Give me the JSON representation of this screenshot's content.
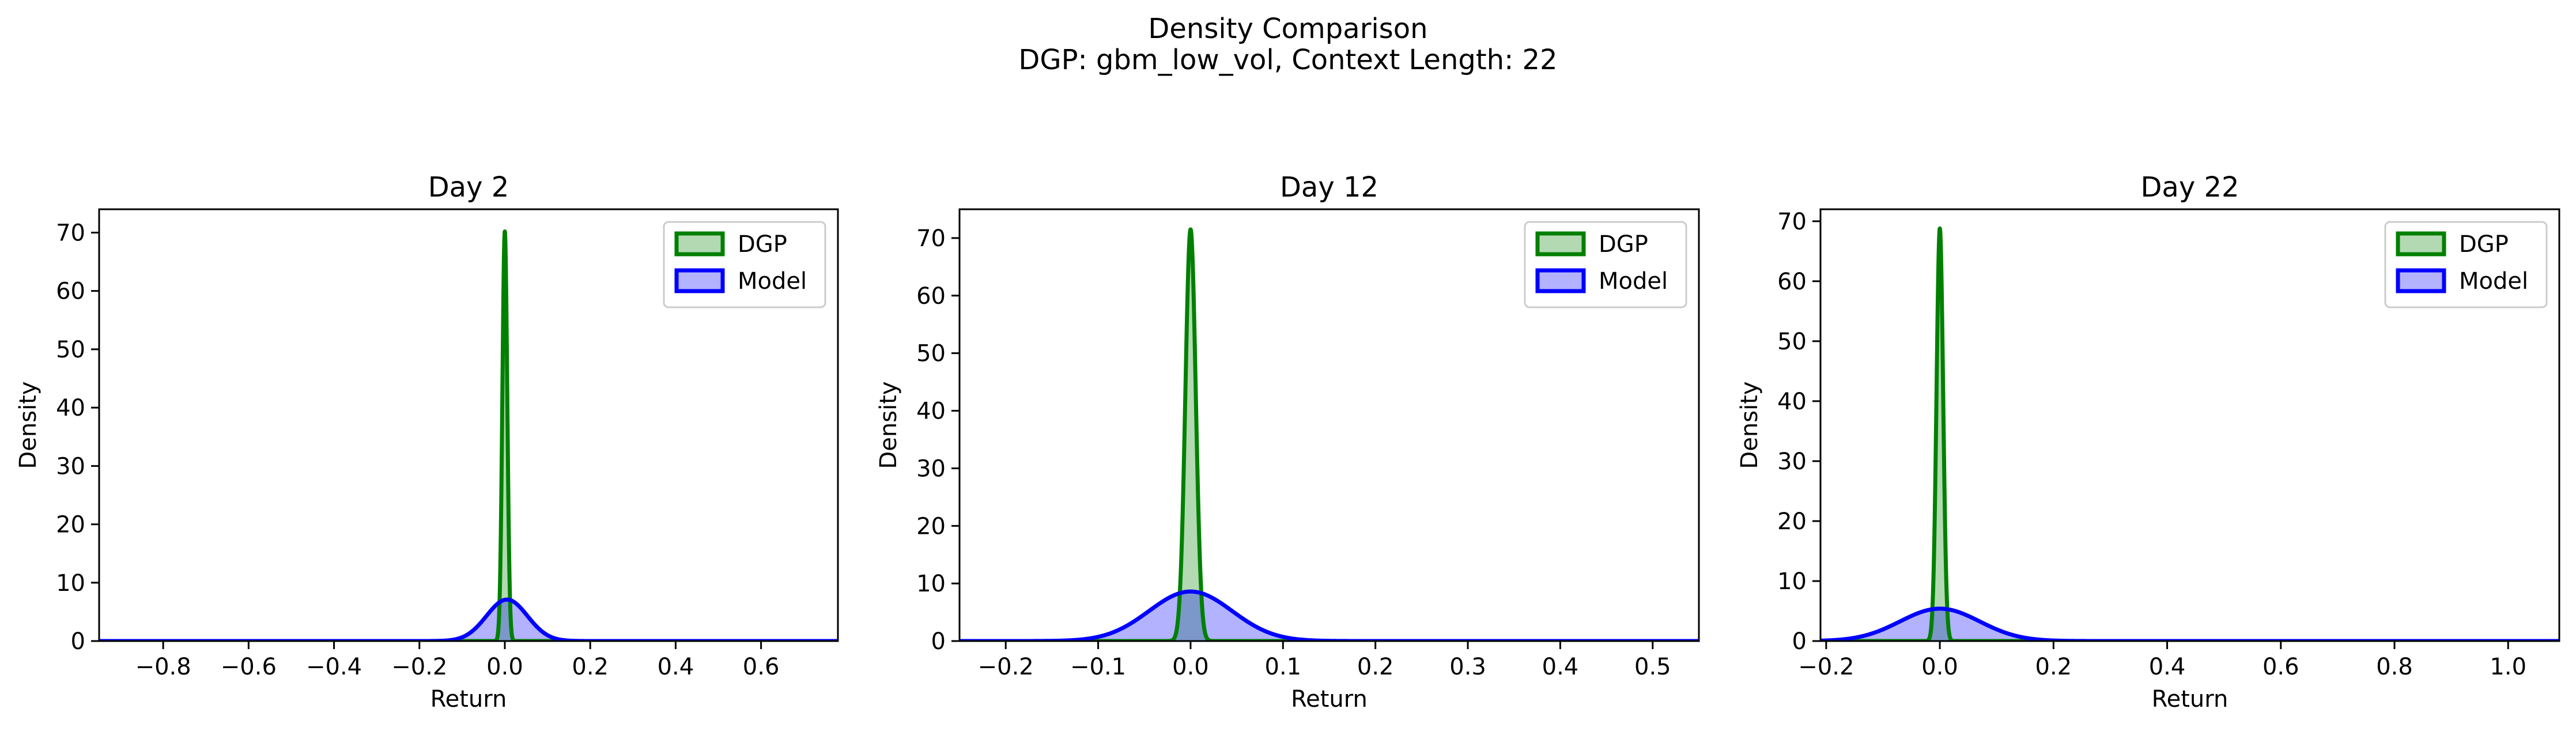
{
  "figure": {
    "title_line1": "Density Comparison",
    "title_line2": "DGP: gbm_low_vol, Context Length: 22"
  },
  "colors": {
    "dgp_line": "#008000",
    "dgp_fill": "#008000",
    "model_line": "#0000ff",
    "model_fill": "#0000ff",
    "axis": "#000000"
  },
  "chart_data": [
    {
      "type": "area",
      "title": "Day 2",
      "xlabel": "Return",
      "ylabel": "Density",
      "xlim": [
        -0.95,
        0.78
      ],
      "ylim": [
        0,
        74
      ],
      "xticks": [
        -0.8,
        -0.6,
        -0.4,
        -0.2,
        0.0,
        0.2,
        0.4,
        0.6
      ],
      "xtick_labels": [
        "−0.8",
        "−0.6",
        "−0.4",
        "−0.2",
        "0.0",
        "0.2",
        "0.4",
        "0.6"
      ],
      "yticks": [
        0,
        10,
        20,
        30,
        40,
        50,
        60,
        70
      ],
      "ytick_labels": [
        "0",
        "10",
        "20",
        "30",
        "40",
        "50",
        "60",
        "70"
      ],
      "legend": "top-right",
      "series": [
        {
          "name": "DGP",
          "peak_x": 0.0,
          "peak_density": 70.2,
          "std": 0.0057
        },
        {
          "name": "Model",
          "peak_x": 0.005,
          "peak_density": 7.1,
          "std": 0.048
        }
      ]
    },
    {
      "type": "area",
      "title": "Day 12",
      "xlabel": "Return",
      "ylabel": "Density",
      "xlim": [
        -0.25,
        0.55
      ],
      "ylim": [
        0,
        75
      ],
      "xticks": [
        -0.2,
        -0.1,
        0.0,
        0.1,
        0.2,
        0.3,
        0.4,
        0.5
      ],
      "xtick_labels": [
        "−0.2",
        "−0.1",
        "0.0",
        "0.1",
        "0.2",
        "0.3",
        "0.4",
        "0.5"
      ],
      "yticks": [
        0,
        10,
        20,
        30,
        40,
        50,
        60,
        70
      ],
      "ytick_labels": [
        "0",
        "10",
        "20",
        "30",
        "40",
        "50",
        "60",
        "70"
      ],
      "legend": "top-right",
      "series": [
        {
          "name": "DGP",
          "peak_x": 0.0,
          "peak_density": 71.5,
          "std": 0.0056
        },
        {
          "name": "Model",
          "peak_x": 0.0,
          "peak_density": 8.6,
          "std": 0.045
        }
      ]
    },
    {
      "type": "area",
      "title": "Day 22",
      "xlabel": "Return",
      "ylabel": "Density",
      "xlim": [
        -0.21,
        1.09
      ],
      "ylim": [
        0,
        72
      ],
      "xticks": [
        -0.2,
        0.0,
        0.2,
        0.4,
        0.6,
        0.8,
        1.0
      ],
      "xtick_labels": [
        "−0.2",
        "0.0",
        "0.2",
        "0.4",
        "0.6",
        "0.8",
        "1.0"
      ],
      "yticks": [
        0,
        10,
        20,
        30,
        40,
        50,
        60,
        70
      ],
      "ytick_labels": [
        "0",
        "10",
        "20",
        "30",
        "40",
        "50",
        "60",
        "70"
      ],
      "legend": "top-right",
      "series": [
        {
          "name": "DGP",
          "peak_x": 0.0,
          "peak_density": 68.8,
          "std": 0.0058
        },
        {
          "name": "Model",
          "peak_x": 0.0,
          "peak_density": 5.4,
          "std": 0.07
        }
      ]
    }
  ]
}
